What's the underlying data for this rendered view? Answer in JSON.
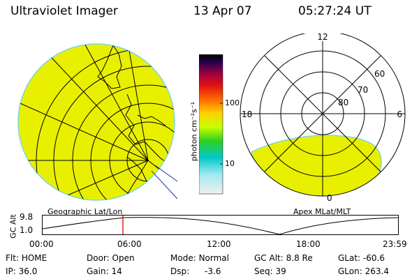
{
  "header": {
    "instrument": "Ultraviolet Imager",
    "date": "13 Apr 07",
    "time": "05:27:24 UT"
  },
  "colorbar": {
    "unit_label": "photon cm⁻²s⁻¹",
    "ticks": [
      "100",
      "10"
    ]
  },
  "left_panel": {
    "label": "Geographic Lat/Lon",
    "fill_color": "#e8f000"
  },
  "right_panel": {
    "label": "Apex MLat/MLT",
    "mlt_labels": {
      "top": "12",
      "left": "18",
      "right": "6",
      "bottom": "0"
    },
    "lat_labels": [
      "60",
      "70",
      "80"
    ]
  },
  "altitude_plot": {
    "ylabel": "GC Alt",
    "y_ticks": [
      "9.8",
      "1.0"
    ],
    "x_ticks": [
      "00:00",
      "06:00",
      "12:00",
      "18:00",
      "23:59"
    ],
    "current_time_marker": "05:27:24"
  },
  "status": {
    "row1": [
      {
        "label": "Flt:",
        "value": "HOME"
      },
      {
        "label": "Door:",
        "value": "Open"
      },
      {
        "label": "Mode:",
        "value": "Normal"
      },
      {
        "label": "GC Alt:",
        "value": "8.8 Re"
      },
      {
        "label": "GLat:",
        "value": "-60.6"
      }
    ],
    "row2": [
      {
        "label": "IP:",
        "value": "36.0"
      },
      {
        "label": "Gain:",
        "value": "14"
      },
      {
        "label": "Dsp:",
        "value": "-3.6"
      },
      {
        "label": "Seq:",
        "value": "39"
      },
      {
        "label": "GLon:",
        "value": "263.4"
      }
    ]
  }
}
